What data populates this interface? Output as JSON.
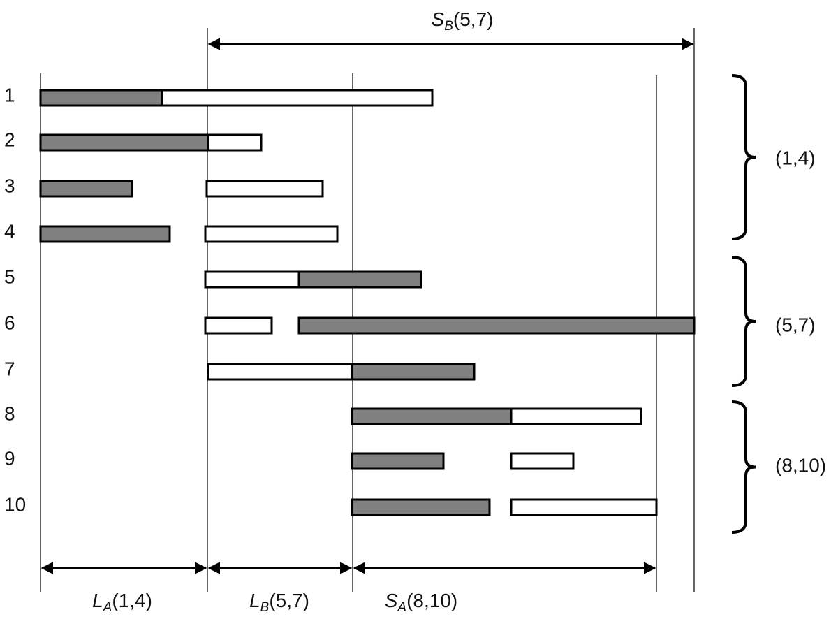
{
  "rows": [
    "1",
    "2",
    "3",
    "4",
    "5",
    "6",
    "7",
    "8",
    "9",
    "10"
  ],
  "groups": [
    "(1,4)",
    "(5,7)",
    "(8,10)"
  ],
  "annotations": {
    "top": {
      "symbol": "S",
      "sub": "B",
      "args": "(5,7)"
    },
    "bottom": [
      {
        "symbol": "L",
        "sub": "A",
        "args": "(1,4)"
      },
      {
        "symbol": "L",
        "sub": "B",
        "args": "(5,7)"
      },
      {
        "symbol": "S",
        "sub": "A",
        "args": "(8,10)"
      }
    ]
  }
}
